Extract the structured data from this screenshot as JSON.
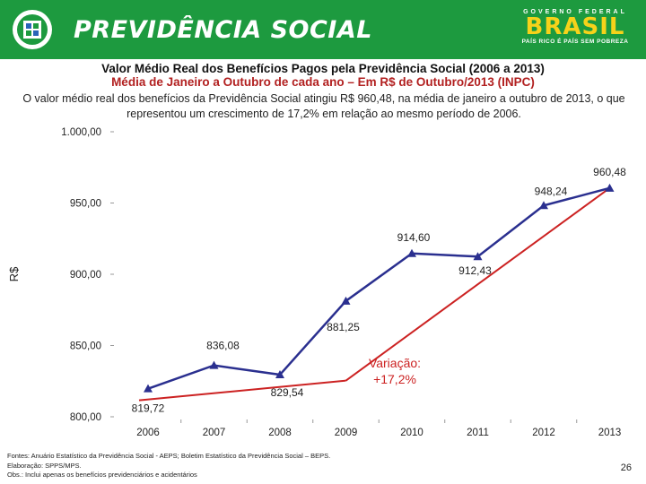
{
  "header": {
    "brand": "PREVIDÊNCIA SOCIAL",
    "gov_top": "GOVERNO FEDERAL",
    "gov_brasil": "BRASIL",
    "gov_slogan": "PAÍS RICO É PAÍS SEM POBREZA",
    "header_color": "#1d9a3f",
    "brasil_color": "#f6d21a"
  },
  "title": "Valor Médio Real dos Benefícios Pagos pela Previdência Social (2006 a 2013)",
  "subtitle": "Média de Janeiro a Outubro de cada ano – Em R$ de Outubro/2013 (INPC)",
  "description": "O valor médio real dos benefícios da Previdência Social atingiu R$ 960,48, na média de janeiro a outubro de 2013, o que representou um crescimento de 17,2% em relação ao mesmo período de 2006.",
  "chart_data": {
    "type": "line",
    "ylabel": "R$",
    "ylim": [
      800,
      1000
    ],
    "yticks": [
      800,
      850,
      900,
      950,
      1000
    ],
    "ytick_labels": [
      "800,00",
      "850,00",
      "900,00",
      "950,00",
      "1.000,00"
    ],
    "categories": [
      "2006",
      "2007",
      "2008",
      "2009",
      "2010",
      "2011",
      "2012",
      "2013"
    ],
    "series": [
      {
        "values": [
          819.72,
          836.08,
          829.54,
          881.25,
          914.6,
          912.43,
          948.24,
          960.48
        ],
        "labels": [
          "819,72",
          "836,08",
          "829,54",
          "881,25",
          "914,60",
          "912,43",
          "948,24",
          "960,48"
        ],
        "color": "#2a2f8f"
      }
    ],
    "annotation": {
      "text_line1": "Variação:",
      "text_line2": "+17,2%",
      "color": "#cc2222"
    }
  },
  "footer": {
    "line1": "Fontes: Anuário Estatístico da Previdência Social - AEPS; Boletim Estatístico da Previdência Social – BEPS.",
    "line2": "Elaboração: SPPS/MPS.",
    "line3": "Obs.: Inclui apenas os benefícios previdenciários e acidentários"
  },
  "page_number": "26"
}
